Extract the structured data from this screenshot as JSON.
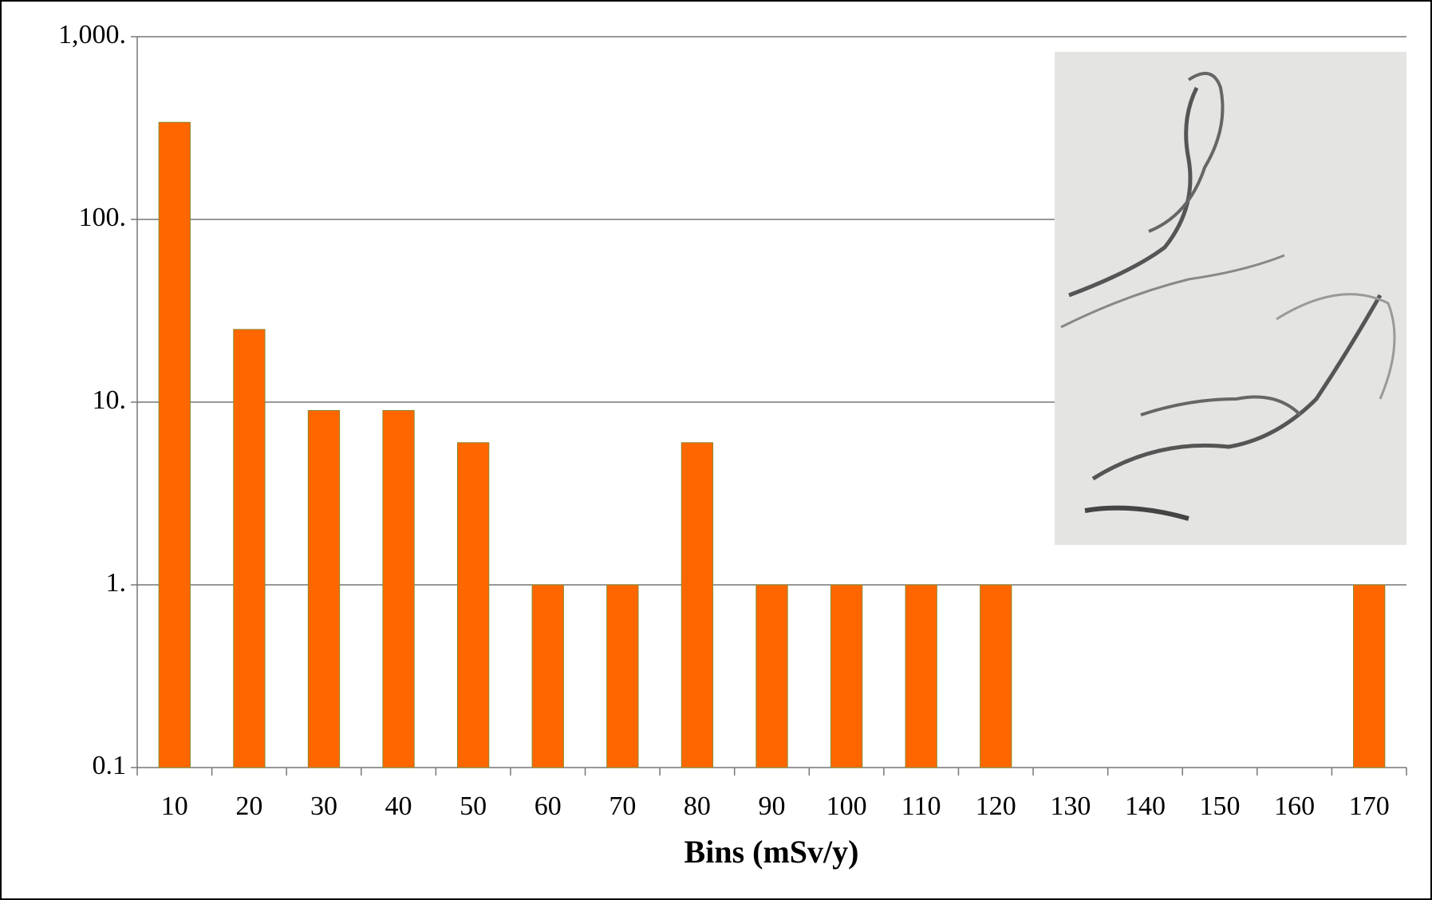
{
  "chart_data": {
    "type": "bar",
    "x_label": "Bins (mSv/y)",
    "categories": [
      "10",
      "20",
      "30",
      "40",
      "50",
      "60",
      "70",
      "80",
      "90",
      "100",
      "110",
      "120",
      "130",
      "140",
      "150",
      "160",
      "170"
    ],
    "values": [
      340,
      25,
      9,
      9,
      6,
      1,
      1,
      6,
      1,
      1,
      1,
      1,
      null,
      null,
      null,
      null,
      1
    ],
    "color": "#ff6600",
    "log_scale": true,
    "ylim": [
      0.1,
      1000
    ],
    "yticks": [
      0.1,
      {
        "value": 1,
        "label": "1."
      },
      {
        "value": 10,
        "label": "10."
      },
      {
        "value": 100,
        "label": "100."
      },
      {
        "value": 1000,
        "label": "1,000."
      }
    ],
    "grid": true
  }
}
